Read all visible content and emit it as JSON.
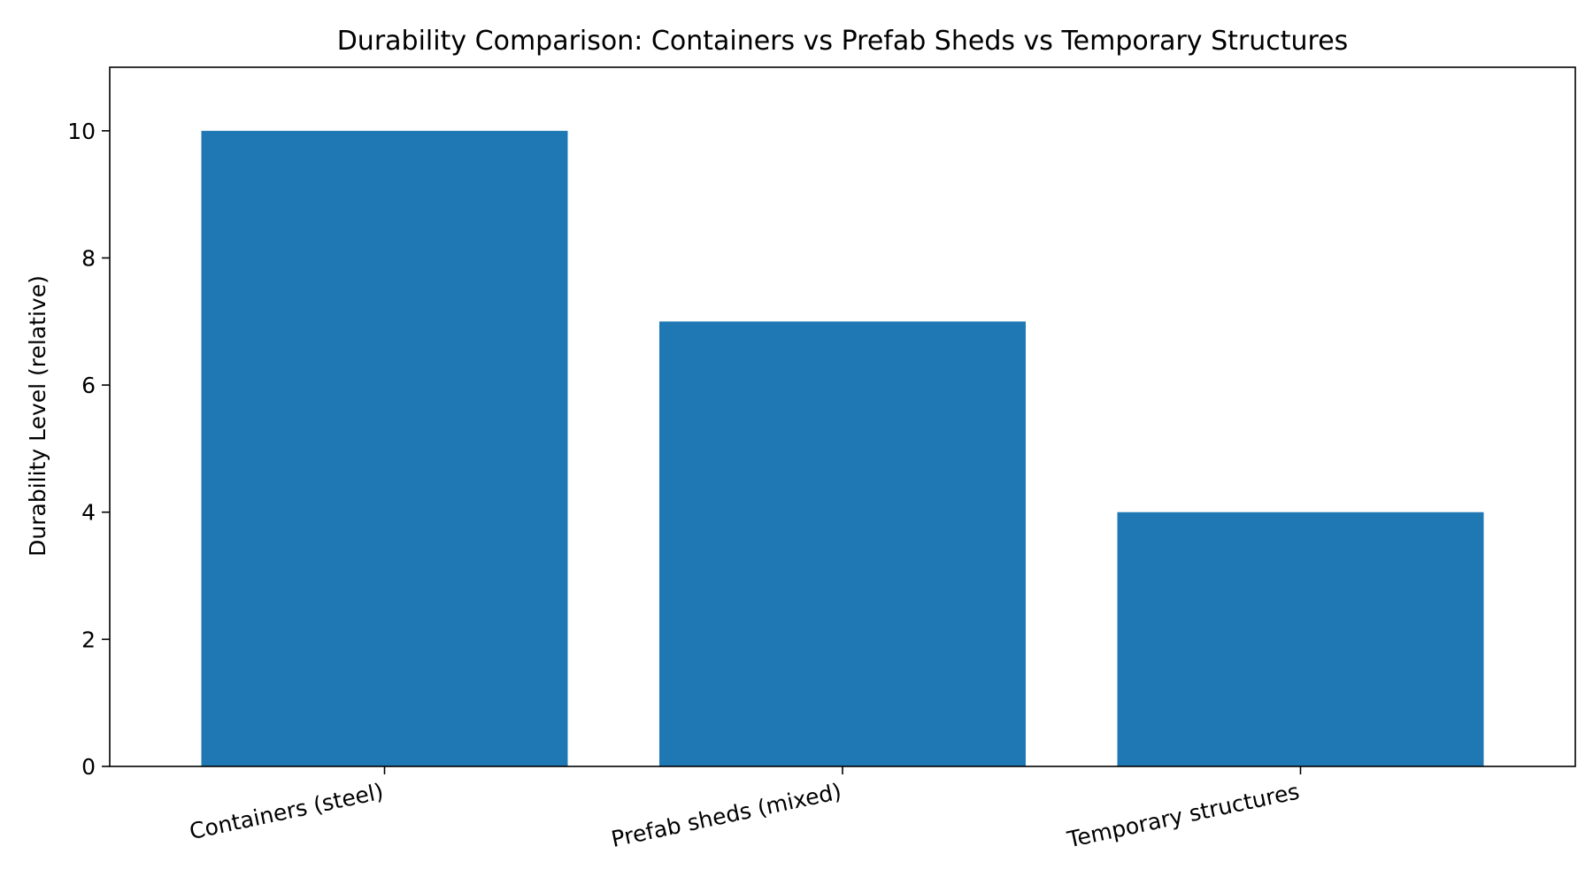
{
  "chart_data": {
    "type": "bar",
    "title": "Durability Comparison: Containers vs Prefab Sheds vs Temporary Structures",
    "xlabel": "",
    "ylabel": "Durability Level (relative)",
    "categories": [
      "Containers (steel)",
      "Prefab sheds (mixed)",
      "Temporary structures"
    ],
    "values": [
      10,
      7,
      4
    ],
    "ylim": [
      0,
      11
    ],
    "yticks": [
      0,
      2,
      4,
      6,
      8,
      10
    ],
    "grid": false,
    "legend": "none",
    "bar_color": "#1f77b4"
  }
}
